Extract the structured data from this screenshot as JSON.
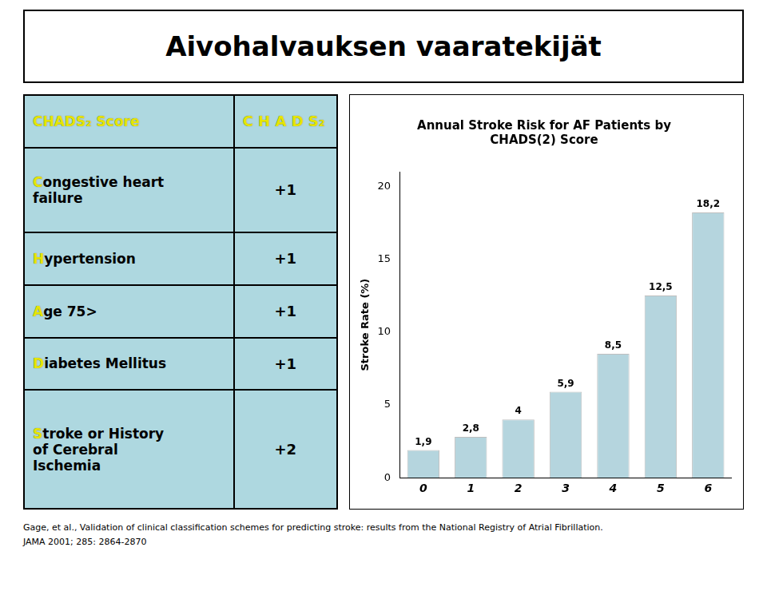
{
  "title": "Aivohalvauksen vaaratekijät",
  "table": [
    {
      "label": "CHADS₂ Score",
      "score": "C H A D S₂",
      "header": true
    },
    {
      "label": "Congestive heart\nfailure",
      "score": "+1"
    },
    {
      "label": "Hypertension",
      "score": "+1"
    },
    {
      "label": "Age 75>",
      "score": "+1"
    },
    {
      "label": "Diabetes Mellitus",
      "score": "+1"
    },
    {
      "label": "Stroke or History\nof Cerebral\nIschemia",
      "score": "+2"
    }
  ],
  "footnotes": [
    "Gage, et al.,  Validation of clinical classification schemes for predicting stroke: results from the National Registry of Atrial Fibrillation.",
    "JAMA 2001; 285: 2864-2870"
  ],
  "chart_data": {
    "type": "bar",
    "title": "Annual Stroke Risk for AF Patients by\nCHADS(2) Score",
    "ylabel": "Stroke Rate (%)",
    "categories": [
      "0",
      "1",
      "2",
      "3",
      "4",
      "5",
      "6"
    ],
    "values": [
      1.9,
      2.8,
      4.0,
      5.9,
      8.5,
      12.5,
      18.2
    ],
    "value_labels": [
      "1,9",
      "2,8",
      "4",
      "5,9",
      "8,5",
      "12,5",
      "18,2"
    ],
    "data_labels": true,
    "color": "#b5d5de",
    "ylim": [
      0,
      21
    ],
    "yticks": [
      0,
      5,
      10,
      15,
      20
    ],
    "grid": false
  }
}
